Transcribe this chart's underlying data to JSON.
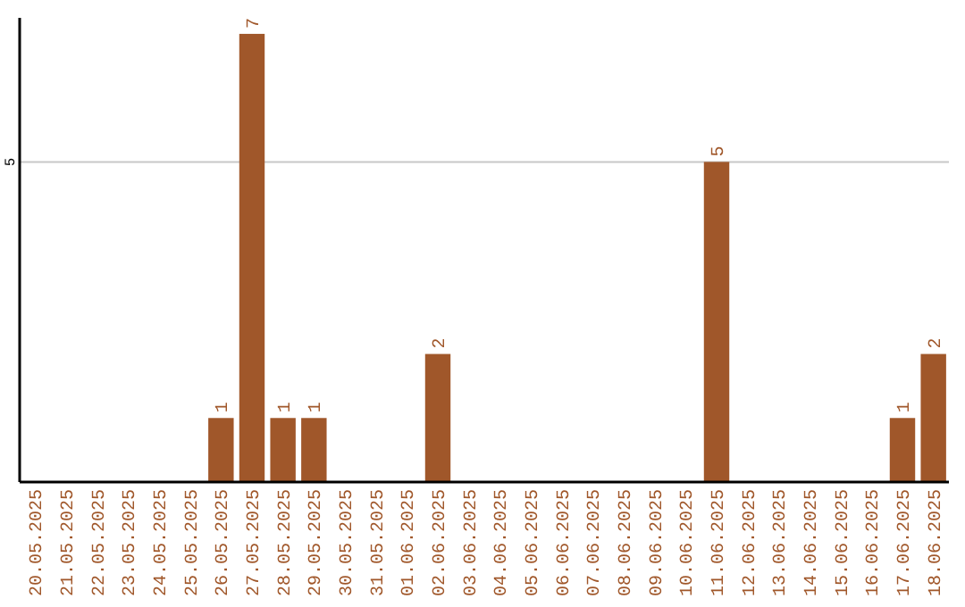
{
  "chart_data": {
    "type": "bar",
    "categories": [
      "20.05.2025",
      "21.05.2025",
      "22.05.2025",
      "23.05.2025",
      "24.05.2025",
      "25.05.2025",
      "26.05.2025",
      "27.05.2025",
      "28.05.2025",
      "29.05.2025",
      "30.05.2025",
      "31.05.2025",
      "01.06.2025",
      "02.06.2025",
      "03.06.2025",
      "04.06.2025",
      "05.06.2025",
      "06.06.2025",
      "07.06.2025",
      "08.06.2025",
      "09.06.2025",
      "10.06.2025",
      "11.06.2025",
      "12.06.2025",
      "13.06.2025",
      "14.06.2025",
      "15.06.2025",
      "16.06.2025",
      "17.06.2025",
      "18.06.2025"
    ],
    "values": [
      0,
      0,
      0,
      0,
      0,
      0,
      1,
      7,
      1,
      1,
      0,
      0,
      0,
      2,
      0,
      0,
      0,
      0,
      0,
      0,
      0,
      0,
      5,
      0,
      0,
      0,
      0,
      0,
      1,
      2
    ],
    "value_labels": [
      null,
      null,
      null,
      null,
      null,
      null,
      "1",
      "7",
      "1",
      "1",
      null,
      null,
      null,
      "2",
      null,
      null,
      null,
      null,
      null,
      null,
      null,
      null,
      "5",
      null,
      null,
      null,
      null,
      null,
      "1",
      "2"
    ],
    "color": "#a0572a",
    "ylim": [
      0,
      7.25
    ],
    "yticks": [
      5
    ],
    "grid": "y"
  }
}
